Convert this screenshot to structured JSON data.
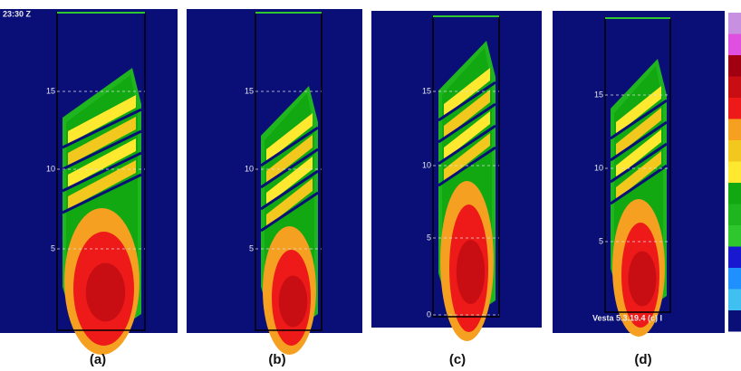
{
  "panels": [
    {
      "caption": "(a)",
      "timestamp": "23:30 Z",
      "axis_labels": [
        "15",
        "10",
        "5"
      ]
    },
    {
      "caption": "(b)",
      "axis_labels": [
        "15",
        "10",
        "5"
      ]
    },
    {
      "caption": "(c)",
      "axis_labels": [
        "15",
        "10",
        "5",
        "0"
      ]
    },
    {
      "caption": "(d)",
      "axis_labels": [
        "15",
        "10",
        "5"
      ],
      "footer": "Vesta 5.3.19.4 (c) I"
    }
  ]
}
